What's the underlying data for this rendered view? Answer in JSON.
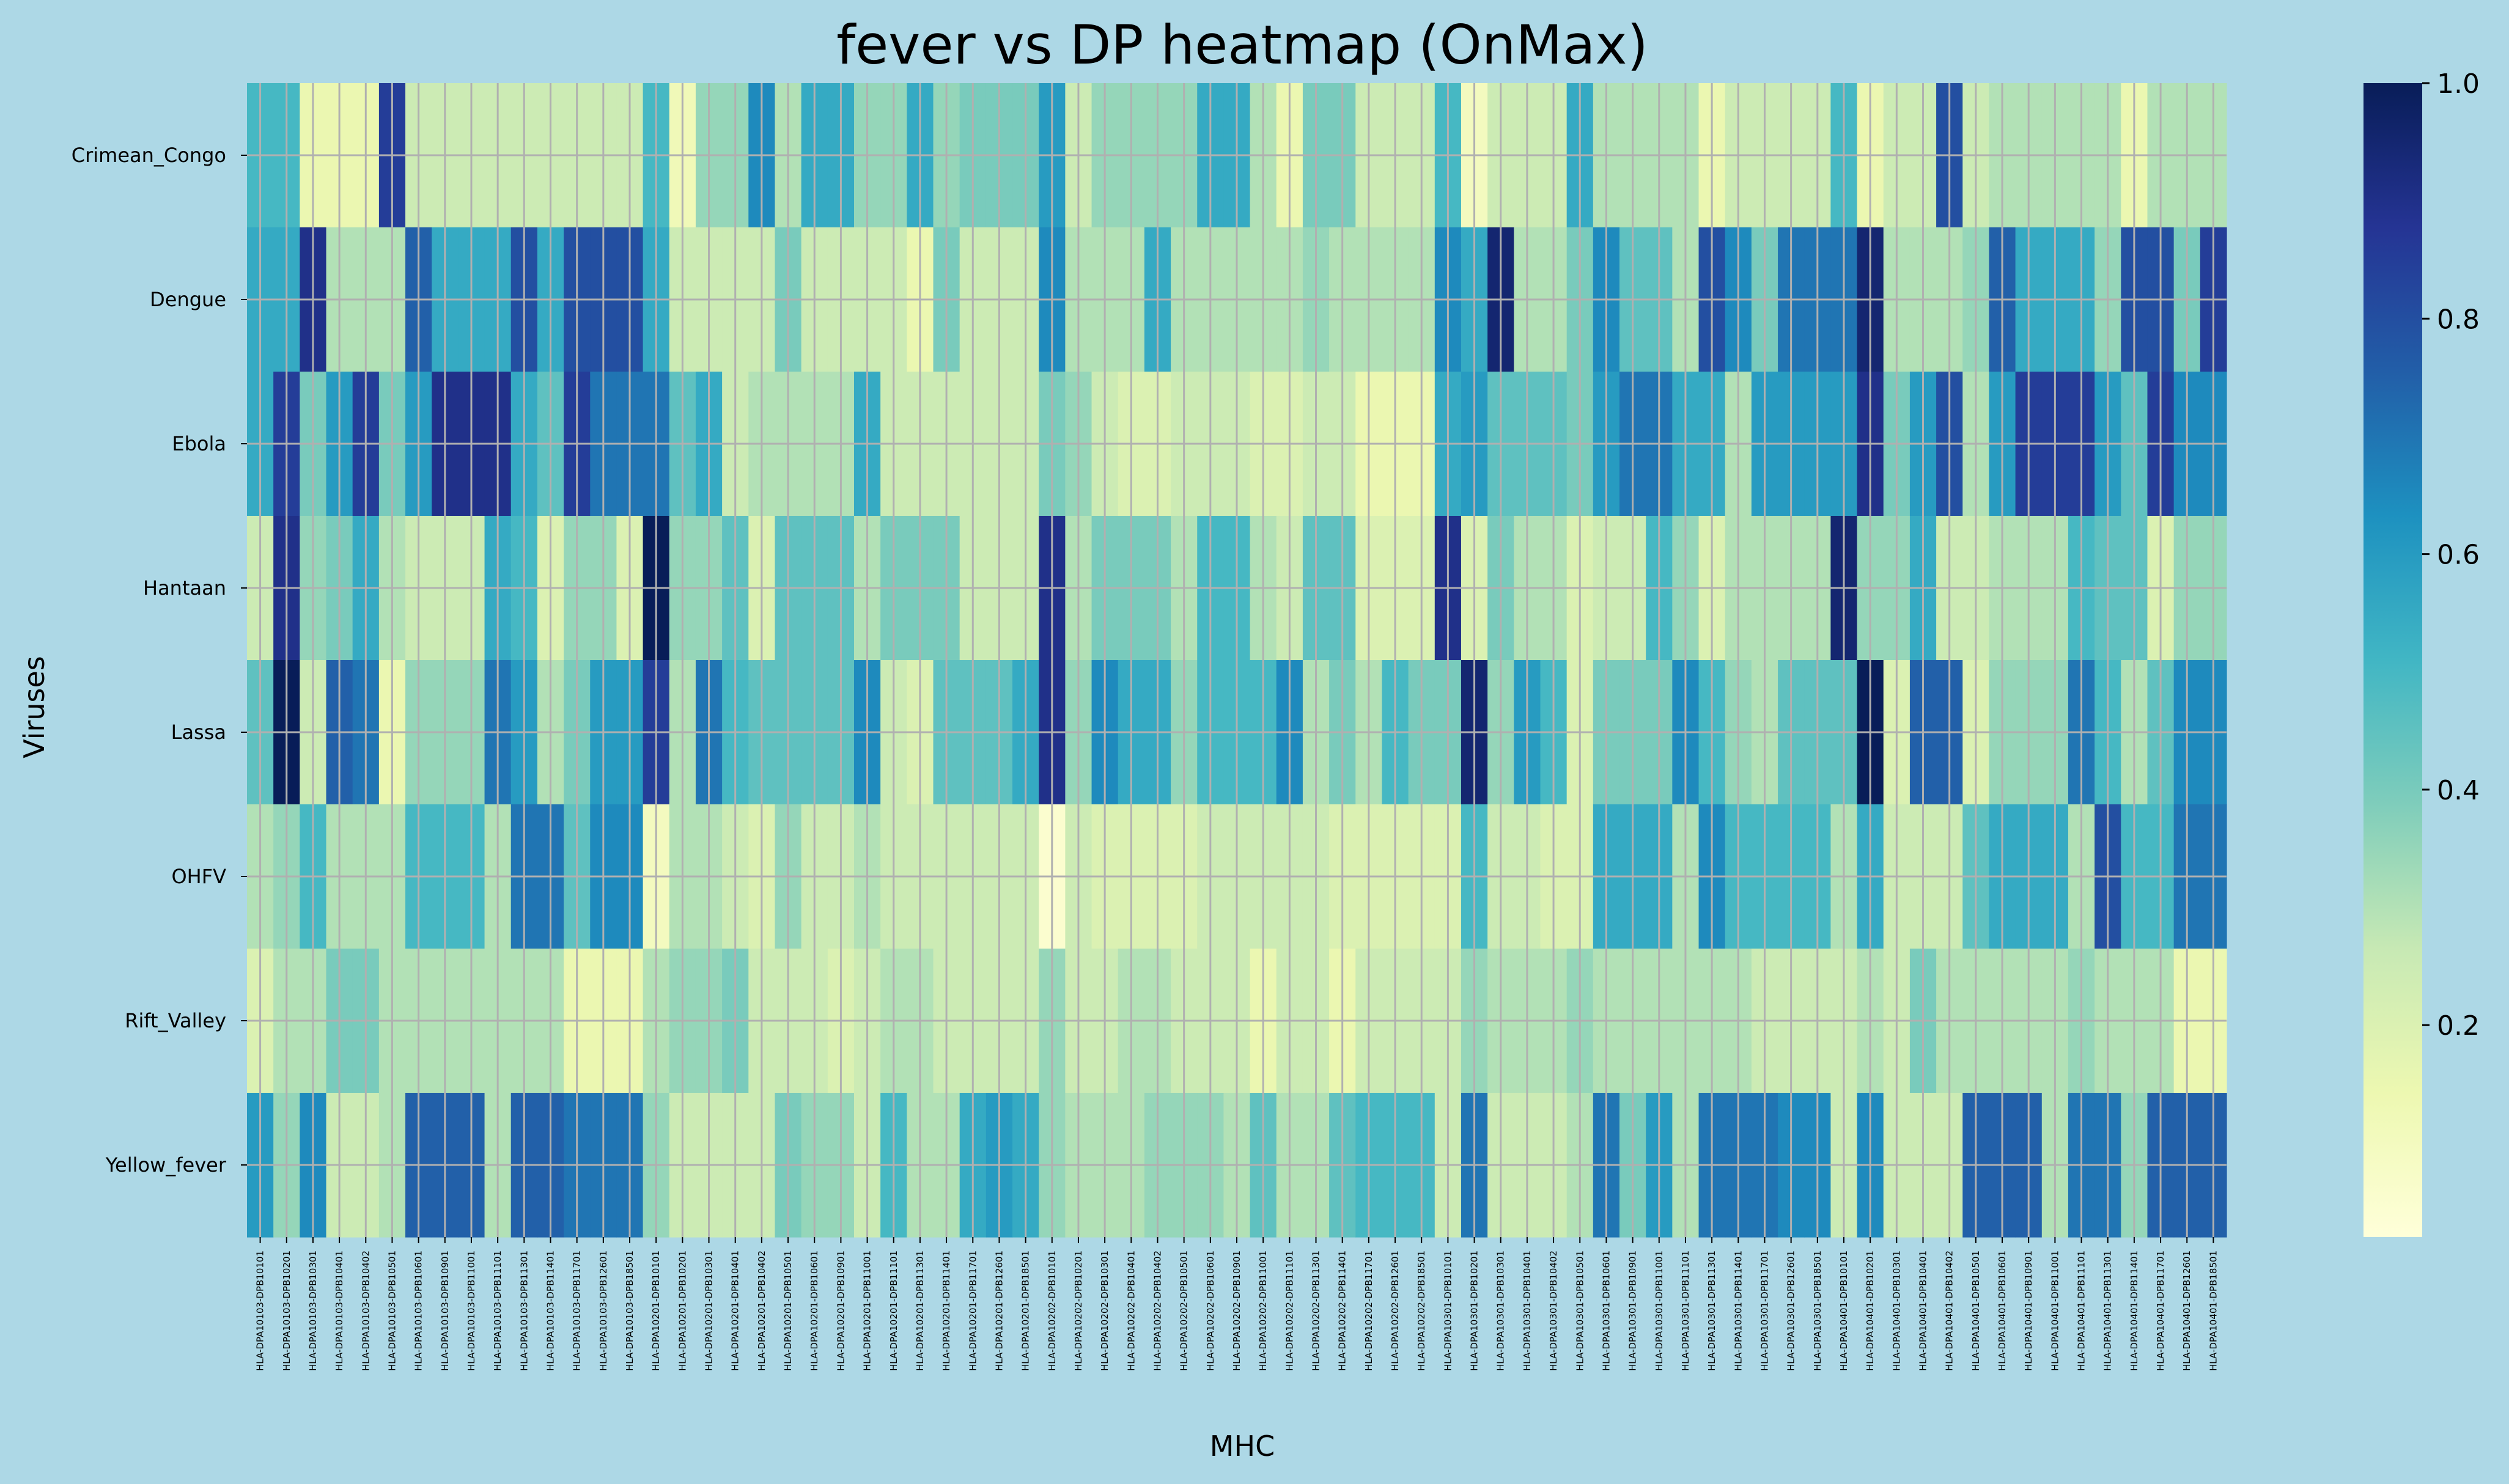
{
  "chart_data": {
    "type": "heatmap",
    "title": "fever vs DP heatmap (OnMax)",
    "xlabel": "MHC",
    "ylabel": "Viruses",
    "colormap": "YlGnBu",
    "colorbar": {
      "vmin": 0.02,
      "vmax": 1.0,
      "ticks": [
        "0.2",
        "0.4",
        "0.6",
        "0.8",
        "1.0"
      ]
    },
    "grid": true,
    "rows": [
      "Crimean_Congo",
      "Dengue",
      "Ebola",
      "Hantaan",
      "Lassa",
      "OHFV",
      "Rift_Valley",
      "Yellow_fever"
    ],
    "groups": [
      [
        "HLA-DPA10103",
        [
          "DPB10101",
          "DPB10201",
          "DPB10301",
          "DPB10401",
          "DPB10402",
          "DPB10501",
          "DPB10601",
          "DPB10901",
          "DPB11001",
          "DPB11101",
          "DPB11301",
          "DPB11401",
          "DPB11701",
          "DPB12601",
          "DPB18501"
        ]
      ],
      [
        "HLA-DPA10201",
        [
          "DPB10101",
          "DPB10201",
          "DPB10301",
          "DPB10401",
          "DPB10402",
          "DPB10501",
          "DPB10601",
          "DPB10901",
          "DPB11001",
          "DPB11101",
          "DPB11301",
          "DPB11401",
          "DPB11701",
          "DPB12601",
          "DPB18501"
        ]
      ],
      [
        "HLA-DPA10202",
        [
          "DPB10101",
          "DPB10201",
          "DPB10301",
          "DPB10401",
          "DPB10402",
          "DPB10501",
          "DPB10601",
          "DPB10901",
          "DPB11001",
          "DPB11101",
          "DPB11301",
          "DPB11401",
          "DPB11701",
          "DPB12601",
          "DPB18501"
        ]
      ],
      [
        "HLA-DPA10301",
        [
          "DPB10101",
          "DPB10201",
          "DPB10301",
          "DPB10401",
          "DPB10402",
          "DPB10501",
          "DPB10601",
          "DPB10901",
          "DPB11001",
          "DPB11101",
          "DPB11301",
          "DPB11401",
          "DPB11701",
          "DPB12601",
          "DPB18501"
        ]
      ],
      [
        "HLA-DPA10401",
        [
          "DPB10101",
          "DPB10201",
          "DPB10301",
          "DPB10401",
          "DPB10402",
          "DPB10501",
          "DPB10601",
          "DPB10901",
          "DPB11001",
          "DPB11101",
          "DPB11301",
          "DPB11401",
          "DPB11701",
          "DPB12601",
          "DPB18501"
        ]
      ]
    ],
    "values": [
      [
        0.5,
        0.5,
        0.15,
        0.15,
        0.15,
        0.85,
        0.25,
        0.25,
        0.25,
        0.25,
        0.25,
        0.25,
        0.25,
        0.25,
        0.25,
        0.5,
        0.12,
        0.35,
        0.35,
        0.65,
        0.3,
        0.55,
        0.55,
        0.35,
        0.35,
        0.55,
        0.35,
        0.4,
        0.4,
        0.4,
        0.6,
        0.25,
        0.35,
        0.35,
        0.35,
        0.35,
        0.55,
        0.55,
        0.3,
        0.15,
        0.4,
        0.4,
        0.25,
        0.25,
        0.25,
        0.5,
        0.1,
        0.25,
        0.25,
        0.25,
        0.55,
        0.3,
        0.3,
        0.3,
        0.3,
        0.15,
        0.25,
        0.25,
        0.25,
        0.25,
        0.5,
        0.15,
        0.25,
        0.25,
        0.8,
        0.25,
        0.3,
        0.3,
        0.3,
        0.3,
        0.3,
        0.15,
        0.3,
        0.3,
        0.3
      ],
      [
        0.55,
        0.55,
        0.9,
        0.3,
        0.3,
        0.3,
        0.75,
        0.55,
        0.55,
        0.55,
        0.8,
        0.55,
        0.8,
        0.8,
        0.8,
        0.55,
        0.25,
        0.25,
        0.25,
        0.25,
        0.4,
        0.25,
        0.25,
        0.25,
        0.25,
        0.15,
        0.4,
        0.25,
        0.25,
        0.25,
        0.65,
        0.3,
        0.3,
        0.3,
        0.55,
        0.3,
        0.3,
        0.3,
        0.3,
        0.3,
        0.35,
        0.3,
        0.3,
        0.3,
        0.3,
        0.65,
        0.55,
        0.95,
        0.3,
        0.3,
        0.4,
        0.65,
        0.45,
        0.45,
        0.3,
        0.8,
        0.65,
        0.4,
        0.7,
        0.7,
        0.7,
        0.95,
        0.3,
        0.3,
        0.3,
        0.35,
        0.75,
        0.55,
        0.55,
        0.55,
        0.35,
        0.8,
        0.8,
        0.4,
        0.85
      ],
      [
        0.55,
        0.85,
        0.4,
        0.6,
        0.85,
        0.4,
        0.6,
        0.9,
        0.9,
        0.9,
        0.55,
        0.45,
        0.85,
        0.7,
        0.7,
        0.7,
        0.45,
        0.55,
        0.25,
        0.3,
        0.3,
        0.3,
        0.3,
        0.55,
        0.25,
        0.25,
        0.25,
        0.25,
        0.25,
        0.25,
        0.4,
        0.35,
        0.25,
        0.2,
        0.2,
        0.25,
        0.25,
        0.25,
        0.2,
        0.2,
        0.25,
        0.25,
        0.15,
        0.15,
        0.15,
        0.55,
        0.6,
        0.45,
        0.45,
        0.45,
        0.4,
        0.6,
        0.7,
        0.7,
        0.55,
        0.55,
        0.3,
        0.6,
        0.6,
        0.6,
        0.6,
        0.9,
        0.4,
        0.6,
        0.8,
        0.3,
        0.6,
        0.85,
        0.85,
        0.85,
        0.6,
        0.45,
        0.85,
        0.65,
        0.65
      ],
      [
        0.25,
        0.9,
        0.35,
        0.4,
        0.55,
        0.3,
        0.25,
        0.25,
        0.25,
        0.55,
        0.5,
        0.2,
        0.35,
        0.35,
        0.2,
        1.0,
        0.35,
        0.35,
        0.45,
        0.2,
        0.45,
        0.45,
        0.45,
        0.3,
        0.4,
        0.4,
        0.4,
        0.25,
        0.25,
        0.25,
        0.9,
        0.3,
        0.4,
        0.4,
        0.4,
        0.3,
        0.5,
        0.5,
        0.3,
        0.25,
        0.45,
        0.45,
        0.2,
        0.2,
        0.2,
        0.9,
        0.2,
        0.4,
        0.3,
        0.3,
        0.2,
        0.25,
        0.25,
        0.5,
        0.35,
        0.2,
        0.3,
        0.3,
        0.3,
        0.3,
        0.95,
        0.35,
        0.35,
        0.55,
        0.25,
        0.25,
        0.3,
        0.3,
        0.3,
        0.5,
        0.45,
        0.45,
        0.2,
        0.35,
        0.35
      ],
      [
        0.45,
        1.0,
        0.25,
        0.75,
        0.7,
        0.15,
        0.35,
        0.35,
        0.35,
        0.7,
        0.6,
        0.3,
        0.4,
        0.6,
        0.6,
        0.85,
        0.3,
        0.7,
        0.5,
        0.45,
        0.45,
        0.45,
        0.45,
        0.65,
        0.25,
        0.2,
        0.45,
        0.45,
        0.45,
        0.55,
        0.9,
        0.35,
        0.65,
        0.55,
        0.55,
        0.35,
        0.5,
        0.5,
        0.5,
        0.65,
        0.3,
        0.4,
        0.3,
        0.5,
        0.4,
        0.4,
        0.95,
        0.35,
        0.6,
        0.5,
        0.2,
        0.4,
        0.4,
        0.4,
        0.65,
        0.5,
        0.35,
        0.3,
        0.45,
        0.45,
        0.45,
        1.0,
        0.2,
        0.75,
        0.75,
        0.2,
        0.35,
        0.35,
        0.35,
        0.7,
        0.5,
        0.3,
        0.45,
        0.65,
        0.65
      ],
      [
        0.3,
        0.35,
        0.5,
        0.3,
        0.3,
        0.3,
        0.5,
        0.5,
        0.5,
        0.3,
        0.7,
        0.7,
        0.45,
        0.65,
        0.65,
        0.1,
        0.3,
        0.3,
        0.25,
        0.2,
        0.35,
        0.25,
        0.25,
        0.3,
        0.25,
        0.25,
        0.25,
        0.25,
        0.25,
        0.25,
        0.05,
        0.25,
        0.2,
        0.2,
        0.2,
        0.2,
        0.25,
        0.25,
        0.25,
        0.25,
        0.25,
        0.2,
        0.2,
        0.2,
        0.2,
        0.2,
        0.5,
        0.25,
        0.25,
        0.2,
        0.2,
        0.55,
        0.55,
        0.55,
        0.3,
        0.65,
        0.5,
        0.5,
        0.5,
        0.5,
        0.3,
        0.55,
        0.25,
        0.25,
        0.25,
        0.45,
        0.55,
        0.55,
        0.55,
        0.3,
        0.8,
        0.5,
        0.5,
        0.7,
        0.7
      ],
      [
        0.2,
        0.3,
        0.3,
        0.4,
        0.4,
        0.3,
        0.3,
        0.3,
        0.3,
        0.3,
        0.3,
        0.3,
        0.15,
        0.15,
        0.15,
        0.3,
        0.35,
        0.35,
        0.4,
        0.25,
        0.25,
        0.25,
        0.2,
        0.25,
        0.3,
        0.3,
        0.25,
        0.25,
        0.25,
        0.25,
        0.35,
        0.25,
        0.25,
        0.3,
        0.3,
        0.25,
        0.25,
        0.25,
        0.15,
        0.25,
        0.25,
        0.15,
        0.25,
        0.25,
        0.25,
        0.25,
        0.35,
        0.3,
        0.3,
        0.3,
        0.35,
        0.3,
        0.3,
        0.3,
        0.3,
        0.3,
        0.3,
        0.25,
        0.25,
        0.25,
        0.25,
        0.3,
        0.25,
        0.4,
        0.3,
        0.3,
        0.3,
        0.3,
        0.3,
        0.35,
        0.3,
        0.3,
        0.3,
        0.15,
        0.15
      ],
      [
        0.6,
        0.35,
        0.65,
        0.25,
        0.25,
        0.3,
        0.75,
        0.75,
        0.75,
        0.3,
        0.75,
        0.75,
        0.7,
        0.7,
        0.7,
        0.35,
        0.25,
        0.25,
        0.25,
        0.25,
        0.4,
        0.35,
        0.35,
        0.25,
        0.5,
        0.3,
        0.3,
        0.55,
        0.6,
        0.55,
        0.35,
        0.3,
        0.3,
        0.3,
        0.35,
        0.35,
        0.35,
        0.3,
        0.45,
        0.3,
        0.3,
        0.45,
        0.5,
        0.5,
        0.5,
        0.25,
        0.7,
        0.25,
        0.25,
        0.25,
        0.3,
        0.7,
        0.4,
        0.6,
        0.3,
        0.7,
        0.7,
        0.7,
        0.65,
        0.65,
        0.25,
        0.65,
        0.25,
        0.25,
        0.25,
        0.75,
        0.75,
        0.75,
        0.3,
        0.7,
        0.7,
        0.35,
        0.75,
        0.75,
        0.75
      ]
    ]
  }
}
